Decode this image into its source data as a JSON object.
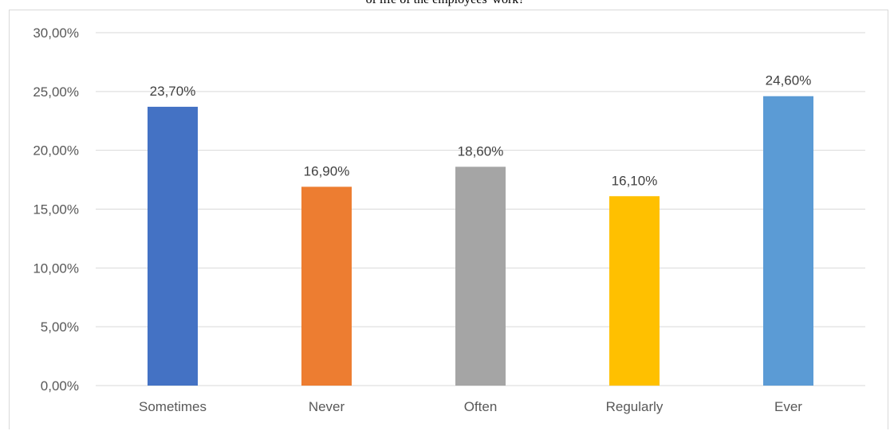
{
  "title_fragment": "of life of the employees' work?",
  "chart_data": {
    "type": "bar",
    "categories": [
      "Sometimes",
      "Never",
      "Often",
      "Regularly",
      "Ever"
    ],
    "values": [
      23.7,
      16.9,
      18.6,
      16.1,
      24.6
    ],
    "data_labels": [
      "23,70%",
      "16,90%",
      "18,60%",
      "16,10%",
      "24,60%"
    ],
    "colors": [
      "#4472c4",
      "#ed7d31",
      "#a5a5a5",
      "#ffc000",
      "#5b9bd5"
    ],
    "ylim": [
      0,
      30
    ],
    "yticks": [
      0,
      5,
      10,
      15,
      20,
      25,
      30
    ],
    "ytick_labels": [
      "0,00%",
      "5,00%",
      "10,00%",
      "15,00%",
      "20,00%",
      "25,00%",
      "30,00%"
    ],
    "grid": true,
    "legend": "none",
    "gridline_color": "#d9d9d9",
    "axis_line_color": "#d9d9d9"
  }
}
